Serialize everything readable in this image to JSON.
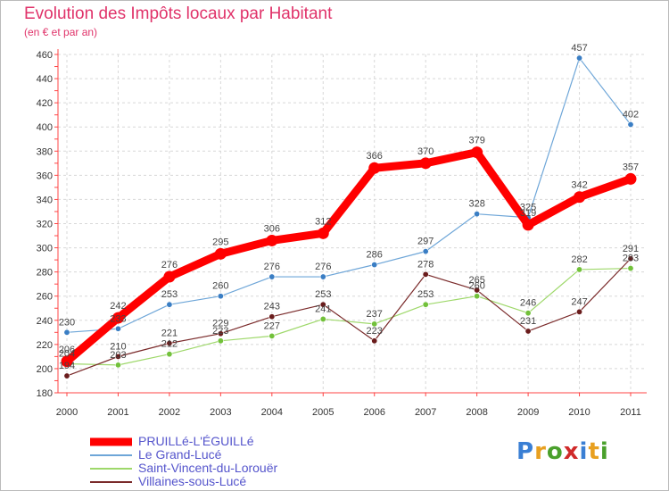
{
  "title": "Evolution des Impôts locaux par Habitant",
  "subtitle": "(en € et par an)",
  "logo": {
    "letters": [
      "P",
      "r",
      "o",
      "x",
      "i",
      "t",
      "i"
    ],
    "colors": [
      "#3a7fd4",
      "#e8a020",
      "#4aa02c",
      "#d02a2a",
      "#3a7fd4",
      "#e8a020",
      "#4aa02c"
    ]
  },
  "chart_data": {
    "type": "line",
    "title": "Evolution des Impôts locaux par Habitant",
    "ylabel": "(en € et par an)",
    "x": [
      "2000",
      "2001",
      "2002",
      "2003",
      "2004",
      "2005",
      "2006",
      "2007",
      "2008",
      "2009",
      "2010",
      "2011"
    ],
    "yticks": [
      "180",
      "200",
      "220",
      "240",
      "260",
      "280",
      "300",
      "320",
      "340",
      "360",
      "380",
      "400",
      "420",
      "440",
      "460"
    ],
    "ylim": [
      180,
      460
    ],
    "grid": true,
    "legend_position": "bottom-left",
    "series": [
      {
        "name": "Le Grand-Lucé",
        "color": "#6ea6d8",
        "marker": "#3a7ec4",
        "values": [
          230,
          233,
          253,
          260,
          276,
          276,
          286,
          297,
          328,
          325,
          457,
          402
        ],
        "labels": [
          "230",
          "233",
          "253",
          "260",
          "276",
          "276",
          "286",
          "297",
          "328",
          "325",
          "457",
          "402"
        ]
      },
      {
        "name": "Saint-Vincent-du-Lorouër",
        "color": "#9ed86a",
        "marker": "#72c13a",
        "values": [
          204,
          203,
          212,
          223,
          227,
          241,
          237,
          253,
          260,
          246,
          282,
          283
        ],
        "labels": [
          "204",
          "203",
          "212",
          "223",
          "227",
          "241",
          "237",
          "253",
          "260",
          "246",
          "282",
          "283"
        ]
      },
      {
        "name": "Villaines-sous-Lucé",
        "color": "#7a2a2a",
        "marker": "#6a1c1c",
        "values": [
          194,
          210,
          221,
          229,
          243,
          253,
          223,
          278,
          265,
          231,
          247,
          291
        ],
        "labels": [
          "194",
          "210",
          "221",
          "229",
          "243",
          "253",
          "223",
          "278",
          "265",
          "231",
          "247",
          "291"
        ]
      },
      {
        "name": "PRUILLé-L'ÉGUILLé",
        "color": "#ff0000",
        "marker": "#ff0000",
        "values": [
          206,
          242,
          276,
          295,
          306,
          312,
          366,
          370,
          379,
          319,
          342,
          357
        ],
        "labels": [
          "206",
          "242",
          "276",
          "295",
          "306",
          "312",
          "366",
          "370",
          "379",
          "319",
          "342",
          "357"
        ]
      }
    ]
  },
  "legend": [
    {
      "label": "PRUILLé-L'ÉGUILLé",
      "color": "#ff0000",
      "weight": "thick"
    },
    {
      "label": "Le Grand-Lucé",
      "color": "#6ea6d8",
      "weight": "thin"
    },
    {
      "label": "Saint-Vincent-du-Lorouër",
      "color": "#9ed86a",
      "weight": "thin"
    },
    {
      "label": "Villaines-sous-Lucé",
      "color": "#7a2a2a",
      "weight": "thin"
    }
  ]
}
